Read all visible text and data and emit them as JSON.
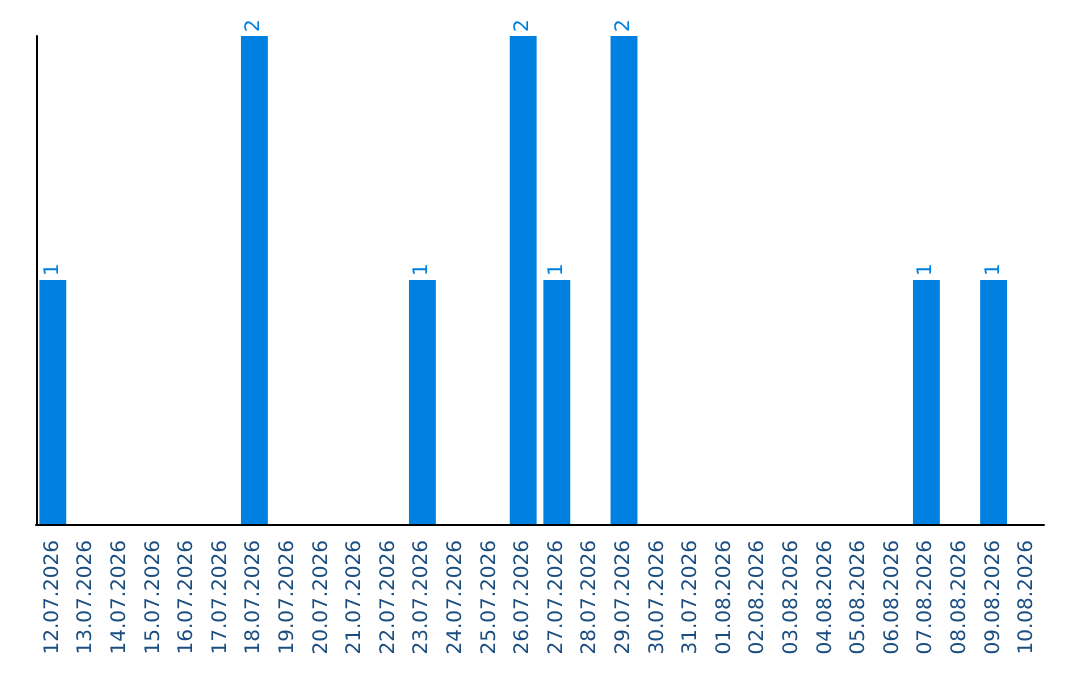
{
  "chart_data": {
    "type": "bar",
    "categories": [
      "12.07.2026",
      "13.07.2026",
      "14.07.2026",
      "15.07.2026",
      "16.07.2026",
      "17.07.2026",
      "18.07.2026",
      "19.07.2026",
      "20.07.2026",
      "21.07.2026",
      "22.07.2026",
      "23.07.2026",
      "24.07.2026",
      "25.07.2026",
      "26.07.2026",
      "27.07.2026",
      "28.07.2026",
      "29.07.2026",
      "30.07.2026",
      "31.07.2026",
      "01.08.2026",
      "02.08.2026",
      "03.08.2026",
      "04.08.2026",
      "05.08.2026",
      "06.08.2026",
      "07.08.2026",
      "08.08.2026",
      "09.08.2026",
      "10.08.2026"
    ],
    "values": [
      1,
      0,
      0,
      0,
      0,
      0,
      2,
      0,
      0,
      0,
      0,
      1,
      0,
      0,
      2,
      1,
      0,
      2,
      0,
      0,
      0,
      0,
      0,
      0,
      0,
      0,
      1,
      0,
      1,
      0
    ],
    "value_labels": [
      "1",
      null,
      null,
      null,
      null,
      null,
      "2",
      null,
      null,
      null,
      null,
      "1",
      null,
      null,
      "2",
      "1",
      null,
      "2",
      null,
      null,
      null,
      null,
      null,
      null,
      null,
      null,
      "1",
      null,
      "1",
      null
    ],
    "color": "#0080e0"
  }
}
